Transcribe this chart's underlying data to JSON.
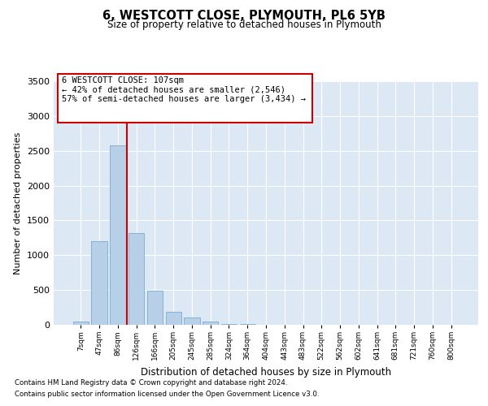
{
  "title": "6, WESTCOTT CLOSE, PLYMOUTH, PL6 5YB",
  "subtitle": "Size of property relative to detached houses in Plymouth",
  "xlabel": "Distribution of detached houses by size in Plymouth",
  "ylabel": "Number of detached properties",
  "bar_labels": [
    "7sqm",
    "47sqm",
    "86sqm",
    "126sqm",
    "166sqm",
    "205sqm",
    "245sqm",
    "285sqm",
    "324sqm",
    "364sqm",
    "404sqm",
    "443sqm",
    "483sqm",
    "522sqm",
    "562sqm",
    "602sqm",
    "641sqm",
    "681sqm",
    "721sqm",
    "760sqm",
    "800sqm"
  ],
  "bar_values": [
    50,
    1200,
    2580,
    1320,
    490,
    190,
    100,
    45,
    15,
    10,
    5,
    5,
    2,
    0,
    0,
    0,
    0,
    0,
    0,
    0,
    0
  ],
  "bar_color": "#b8cfe8",
  "bar_edge_color": "#7baad4",
  "vline_color": "#cc0000",
  "vline_x": 2.5,
  "annotation_line1": "6 WESTCOTT CLOSE: 107sqm",
  "annotation_line2": "← 42% of detached houses are smaller (2,546)",
  "annotation_line3": "57% of semi-detached houses are larger (3,434) →",
  "annotation_box_color": "#cc0000",
  "ylim": [
    0,
    3500
  ],
  "yticks": [
    0,
    500,
    1000,
    1500,
    2000,
    2500,
    3000,
    3500
  ],
  "background_color": "#dde8f5",
  "grid_color": "#ffffff",
  "footer_line1": "Contains HM Land Registry data © Crown copyright and database right 2024.",
  "footer_line2": "Contains public sector information licensed under the Open Government Licence v3.0."
}
